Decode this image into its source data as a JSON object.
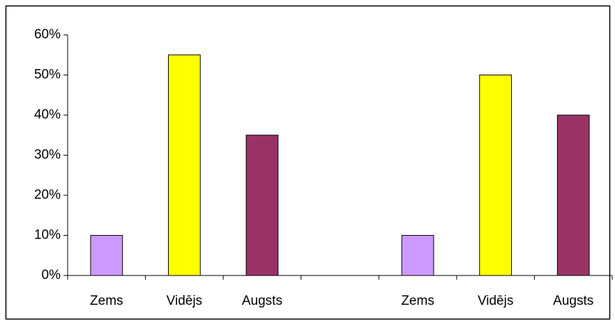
{
  "chart_data": {
    "type": "bar",
    "categories": [
      "Zems",
      "Vidējs",
      "Augsts",
      null,
      "Zems",
      "Vidējs",
      "Augsts"
    ],
    "values": [
      10,
      55,
      35,
      null,
      10,
      50,
      40
    ],
    "colors": [
      "#cc99ff",
      "#ffff00",
      "#993366",
      null,
      "#cc99ff",
      "#ffff00",
      "#993366"
    ],
    "ylim": [
      0,
      60
    ],
    "yticks": [
      {
        "value": 0,
        "label": "0%"
      },
      {
        "value": 10,
        "label": "10%"
      },
      {
        "value": 20,
        "label": "20%"
      },
      {
        "value": 30,
        "label": "30%"
      },
      {
        "value": 40,
        "label": "40%"
      },
      {
        "value": 50,
        "label": "50%"
      },
      {
        "value": 60,
        "label": "60%"
      }
    ],
    "grid": false
  }
}
